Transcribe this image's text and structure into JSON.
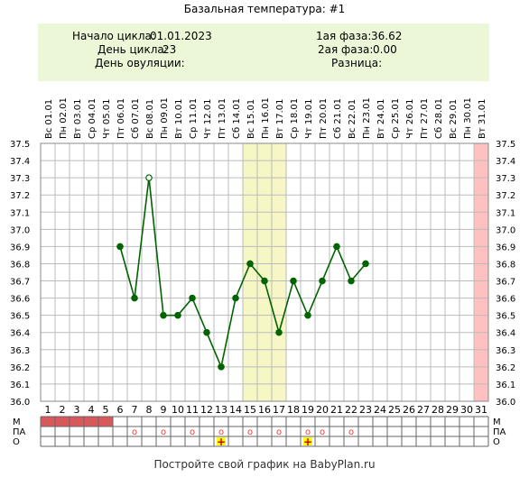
{
  "title": "Базальная температура: #1",
  "info": {
    "cycle_start_label": "Начало цикла:",
    "cycle_start": "01.01.2023",
    "cycle_day_label": "День цикла:",
    "cycle_day": "23",
    "ovulation_day_label": "День овуляции:",
    "ovulation_day": "",
    "phase1_label": "1ая фаза:",
    "phase1": "36.62",
    "phase2_label": "2ая фаза:",
    "phase2": "0.00",
    "difference_label": "Разница:",
    "difference": ""
  },
  "footer": "Постройте свой график на BabyPlan.ru",
  "colors": {
    "line": "#006400",
    "marker": "#006400",
    "grid": "#bbbbbb",
    "highlight": "#f7f7c6",
    "end_band": "#ffc0c0",
    "menses": "#d9585a",
    "marker_o": "#ff3333",
    "plus_bg": "#ffff00",
    "plus_fg": "#cc0000"
  },
  "chart_data": {
    "type": "line",
    "title": "Базальная температура: #1",
    "dates": [
      "Вс 01.01",
      "Пн 02.01",
      "Вт 03.01",
      "Ср 04.01",
      "Чт 05.01",
      "Пт 06.01",
      "Сб 07.01",
      "Вс 08.01",
      "Пн 09.01",
      "Вт 10.01",
      "Ср 11.01",
      "Чт 12.01",
      "Пт 13.01",
      "Сб 14.01",
      "Вс 15.01",
      "Пн 16.01",
      "Вт 17.01",
      "Ср 18.01",
      "Чт 19.01",
      "Пт 20.01",
      "Сб 21.01",
      "Вс 22.01",
      "Пн 23.01",
      "Вт 24.01",
      "Ср 25.01",
      "Чт 26.01",
      "Пт 27.01",
      "Сб 28.01",
      "Вс 29.01",
      "Пн 30.01",
      "Вт 31.01"
    ],
    "days": [
      1,
      2,
      3,
      4,
      5,
      6,
      7,
      8,
      9,
      10,
      11,
      12,
      13,
      14,
      15,
      16,
      17,
      18,
      19,
      20,
      21,
      22,
      23,
      24,
      25,
      26,
      27,
      28,
      29,
      30,
      31
    ],
    "values": [
      null,
      null,
      null,
      null,
      null,
      36.9,
      36.6,
      37.3,
      36.5,
      36.5,
      36.6,
      36.4,
      36.2,
      36.6,
      36.8,
      36.7,
      36.4,
      36.7,
      36.5,
      36.7,
      36.9,
      36.7,
      36.8,
      null,
      null,
      null,
      null,
      null,
      null,
      null,
      null
    ],
    "open_marker_days": [
      8
    ],
    "y_ticks": [
      "36.0",
      "36.1",
      "36.2",
      "36.3",
      "36.4",
      "36.5",
      "36.6",
      "36.7",
      "36.8",
      "36.9",
      "37.0",
      "37.1",
      "37.2",
      "37.3",
      "37.4",
      "37.5"
    ],
    "ylim": [
      36.0,
      37.5
    ],
    "grid": true,
    "highlight_days": [
      15,
      16,
      17
    ],
    "end_band_day": 31,
    "rows": {
      "labels": [
        "М",
        "ПА",
        "О"
      ],
      "menses_days": [
        1,
        2,
        3,
        4,
        5
      ],
      "pa_days": [
        7,
        9,
        11,
        13,
        15,
        17,
        19,
        20,
        22
      ],
      "o_days": [
        13,
        19
      ],
      "pa_symbol": "o",
      "o_symbol": "+"
    }
  }
}
